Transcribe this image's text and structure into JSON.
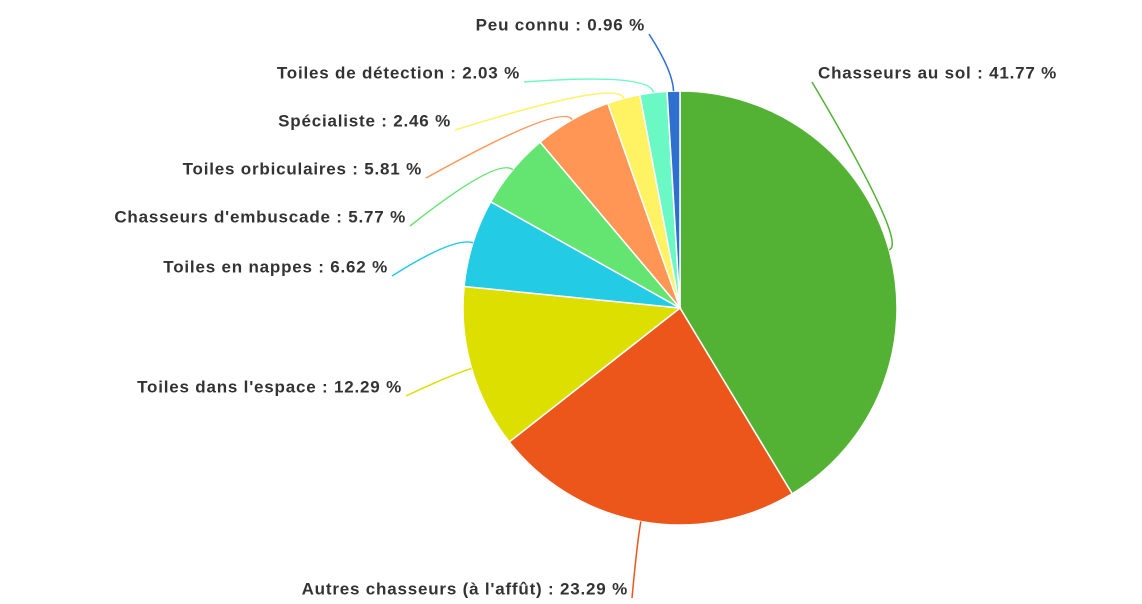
{
  "chart_data": {
    "type": "pie",
    "values": [
      41.77,
      23.29,
      12.29,
      6.62,
      5.77,
      5.81,
      2.46,
      2.03,
      0.96
    ],
    "value_labels": [
      "Chasseurs au sol : 41.77 %",
      "Autres chasseurs (à l'affût) : 23.29 %",
      "Toiles dans l'espace : 12.29 %",
      "Toiles en nappes : 6.62 %",
      "Chasseurs d'embuscade : 5.77 %",
      "Toiles orbiculaires : 5.81 %",
      "Spécialiste : 2.46 %",
      "Toiles de détection : 2.03 %",
      "Peu connu : 0.96 %"
    ],
    "colors": [
      "#53b234",
      "#ec561b",
      "#dddf00",
      "#24cbe5",
      "#64e572",
      "#ff9655",
      "#fff263",
      "#6af9c4",
      "#2f6fd0"
    ]
  }
}
